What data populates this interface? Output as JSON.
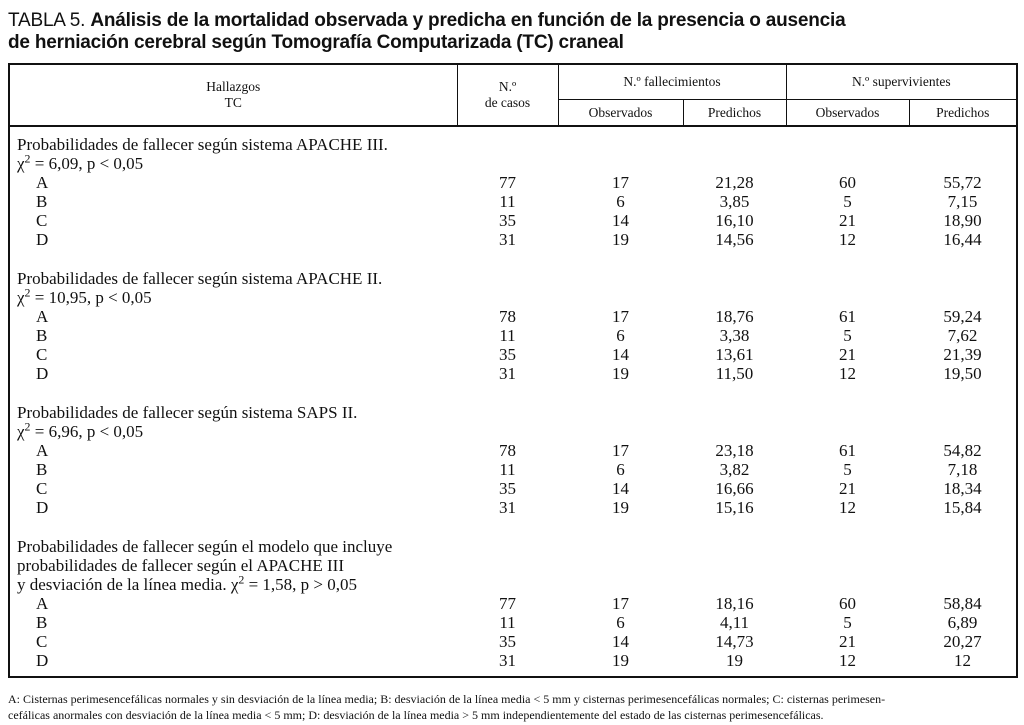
{
  "title": {
    "label": "TABLA 5.",
    "bold_line1": "Análisis de la mortalidad observada y predicha en función de la presencia o ausencia",
    "bold_line2": "de herniación cerebral según Tomografía Computarizada (TC) craneal"
  },
  "table": {
    "col_headers": {
      "hallazgos_line1": "Hallazgos",
      "hallazgos_line2": "TC",
      "casos_line1": "N.º",
      "casos_line2": "de casos",
      "fallecimientos": "N.º fallecimientos",
      "supervivientes": "N.º supervivientes",
      "observados": "Observados",
      "predichos": "Predichos"
    },
    "sections": [
      {
        "heading_lines": [
          "Probabilidades de fallecer según sistema APACHE III.",
          "χ² = 6,09, p < 0,05"
        ],
        "rows": [
          [
            "A",
            "77",
            "17",
            "21,28",
            "60",
            "55,72"
          ],
          [
            "B",
            "11",
            "6",
            "3,85",
            "5",
            "7,15"
          ],
          [
            "C",
            "35",
            "14",
            "16,10",
            "21",
            "18,90"
          ],
          [
            "D",
            "31",
            "19",
            "14,56",
            "12",
            "16,44"
          ]
        ]
      },
      {
        "heading_lines": [
          "Probabilidades de fallecer según sistema APACHE II.",
          "χ² = 10,95, p < 0,05"
        ],
        "rows": [
          [
            "A",
            "78",
            "17",
            "18,76",
            "61",
            "59,24"
          ],
          [
            "B",
            "11",
            "6",
            "3,38",
            "5",
            "7,62"
          ],
          [
            "C",
            "35",
            "14",
            "13,61",
            "21",
            "21,39"
          ],
          [
            "D",
            "31",
            "19",
            "11,50",
            "12",
            "19,50"
          ]
        ]
      },
      {
        "heading_lines": [
          "Probabilidades de fallecer según sistema SAPS II.",
          "χ² = 6,96, p < 0,05"
        ],
        "rows": [
          [
            "A",
            "78",
            "17",
            "23,18",
            "61",
            "54,82"
          ],
          [
            "B",
            "11",
            "6",
            "3,82",
            "5",
            "7,18"
          ],
          [
            "C",
            "35",
            "14",
            "16,66",
            "21",
            "18,34"
          ],
          [
            "D",
            "31",
            "19",
            "15,16",
            "12",
            "15,84"
          ]
        ]
      },
      {
        "heading_lines": [
          "Probabilidades de fallecer según el modelo que incluye",
          "probabilidades de fallecer según el APACHE III",
          "y desviación de la línea media. χ² = 1,58, p > 0,05"
        ],
        "rows": [
          [
            "A",
            "77",
            "17",
            "18,16",
            "60",
            "58,84"
          ],
          [
            "B",
            "11",
            "6",
            "4,11",
            "5",
            "6,89"
          ],
          [
            "C",
            "35",
            "14",
            "14,73",
            "21",
            "20,27"
          ],
          [
            "D",
            "31",
            "19",
            "19",
            "12",
            "12"
          ]
        ]
      }
    ],
    "cell_names": [
      "row-label-cell",
      "casos-cell",
      "fallecimientos-observados-cell",
      "fallecimientos-predichos-cell",
      "supervivientes-observados-cell",
      "supervivientes-predichos-cell"
    ]
  },
  "footnote": {
    "line1": "A: Cisternas perimesencefálicas normales y sin desviación de la línea media; B: desviación de la línea media < 5 mm y cisternas perimesencefálicas normales; C: cisternas perimesen-",
    "line2": "cefálicas anormales con desviación de la línea media < 5 mm; D: desviación de la línea media > 5 mm independientemente del estado de las cisternas perimesencefálicas."
  }
}
